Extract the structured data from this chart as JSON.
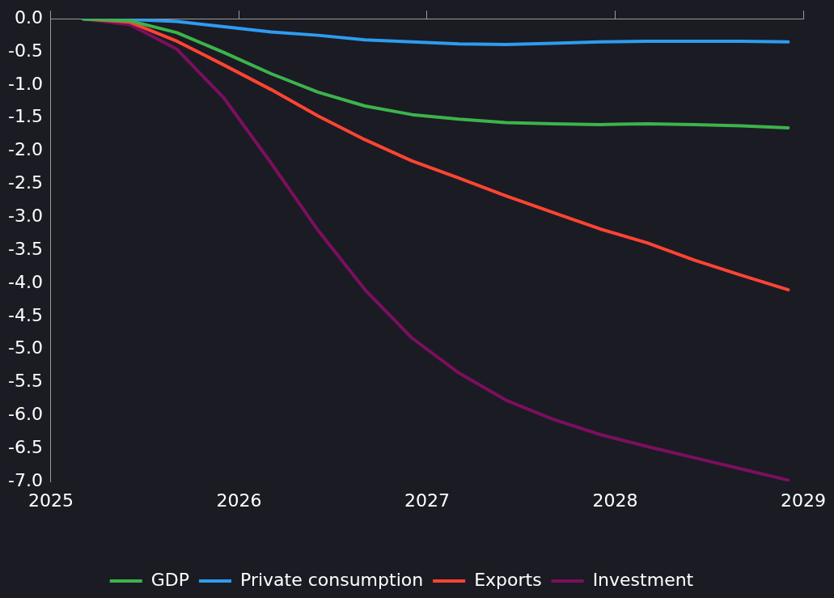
{
  "chart_data": {
    "type": "line",
    "x": [
      2025.17,
      2025.42,
      2025.67,
      2025.92,
      2026.17,
      2026.42,
      2026.67,
      2026.92,
      2027.17,
      2027.42,
      2027.67,
      2027.92,
      2028.17,
      2028.42,
      2028.67,
      2028.92
    ],
    "series": [
      {
        "name": "GDP",
        "color": "#3cb44b",
        "values": [
          0,
          -0.03,
          -0.21,
          -0.51,
          -0.83,
          -1.11,
          -1.32,
          -1.45,
          -1.52,
          -1.57,
          -1.59,
          -1.6,
          -1.59,
          -1.6,
          -1.62,
          -1.65
        ]
      },
      {
        "name": "Private consumption",
        "color": "#2e9cf0",
        "values": [
          0,
          -0.01,
          -0.04,
          -0.12,
          -0.2,
          -0.25,
          -0.32,
          -0.35,
          -0.38,
          -0.39,
          -0.37,
          -0.35,
          -0.34,
          -0.34,
          -0.34,
          -0.35
        ]
      },
      {
        "name": "Exports",
        "color": "#ff4433",
        "values": [
          0,
          -0.05,
          -0.34,
          -0.7,
          -1.07,
          -1.47,
          -1.83,
          -2.15,
          -2.41,
          -2.68,
          -2.93,
          -3.18,
          -3.39,
          -3.65,
          -3.88,
          -4.1
        ]
      },
      {
        "name": "Investment",
        "color": "#7b0f5e",
        "values": [
          0,
          -0.09,
          -0.46,
          -1.2,
          -2.18,
          -3.2,
          -4.1,
          -4.83,
          -5.36,
          -5.77,
          -6.06,
          -6.29,
          -6.47,
          -6.64,
          -6.81,
          -6.98
        ]
      }
    ],
    "xlim": [
      2025,
      2029
    ],
    "xticks": [
      2025,
      2026,
      2027,
      2028,
      2029
    ],
    "ylim": [
      -7,
      0
    ],
    "yticks": [
      {
        "value": 0,
        "label": "0.0"
      },
      {
        "value": -0.5,
        "label": "-0.5"
      },
      {
        "value": -1,
        "label": "-1.0"
      },
      {
        "value": -1.5,
        "label": "-1.5"
      },
      {
        "value": -2,
        "label": "-2.0"
      },
      {
        "value": -2.5,
        "label": "-2.5"
      },
      {
        "value": -3,
        "label": "-3.0"
      },
      {
        "value": -3.5,
        "label": "-3.5"
      },
      {
        "value": -4,
        "label": "-4.0"
      },
      {
        "value": -4.5,
        "label": "-4.5"
      },
      {
        "value": -5,
        "label": "-5.0"
      },
      {
        "value": -5.5,
        "label": "-5.5"
      },
      {
        "value": -6,
        "label": "-6.0"
      },
      {
        "value": -6.5,
        "label": "-6.5"
      },
      {
        "value": -7,
        "label": "-7.0"
      }
    ],
    "grid": false,
    "legend": "bottom",
    "marker": "none",
    "line_style": "solid"
  }
}
